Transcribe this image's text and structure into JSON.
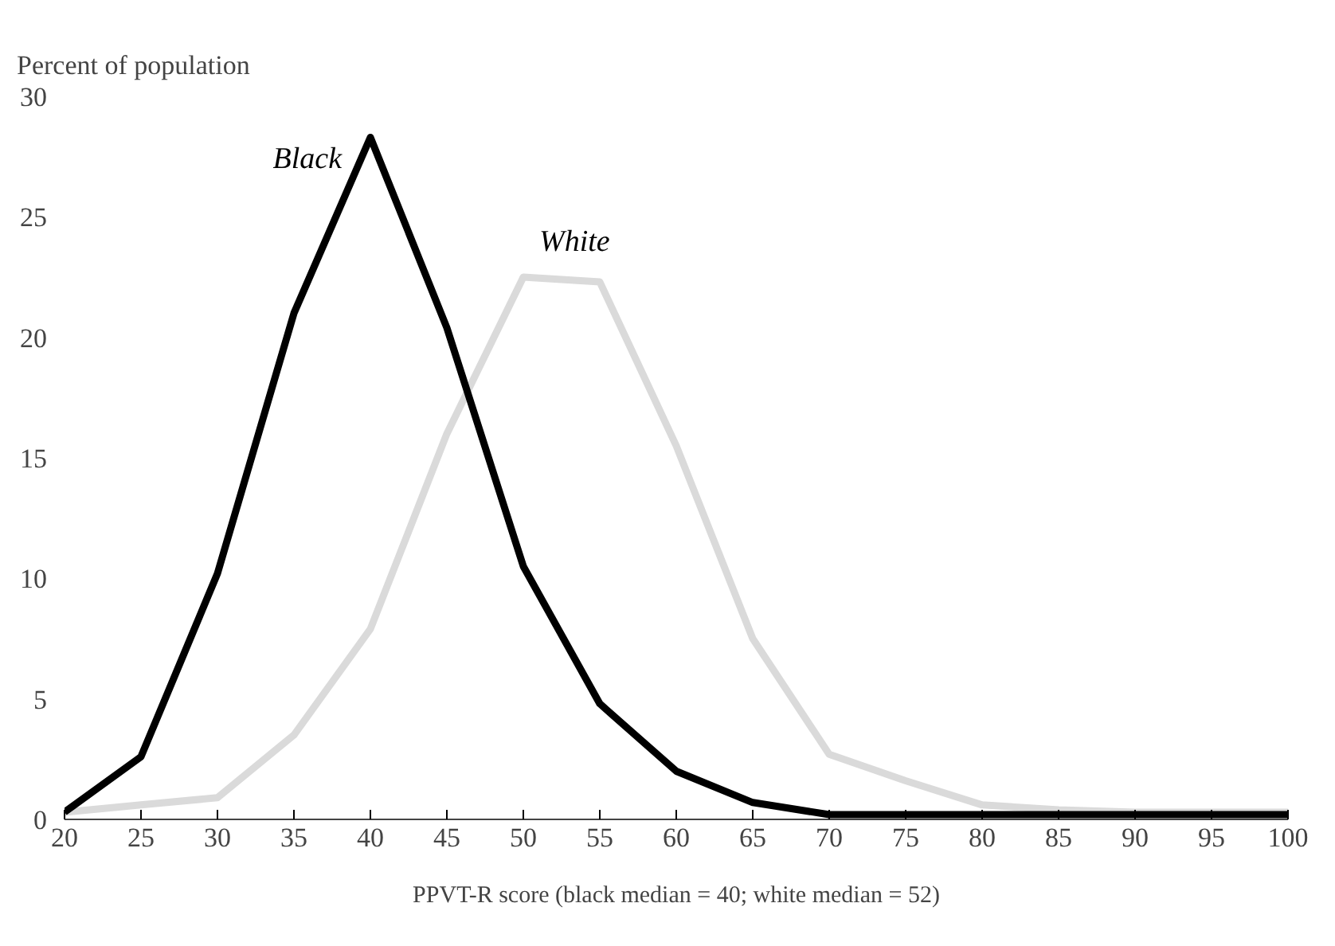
{
  "chart_data": {
    "type": "line",
    "ylabel": "Percent of population",
    "xlabel": "PPVT-R score (black median = 40; white median = 52)",
    "x": [
      20,
      25,
      30,
      35,
      40,
      45,
      50,
      55,
      60,
      65,
      70,
      75,
      80,
      85,
      90,
      95,
      100
    ],
    "xlim": [
      20,
      100
    ],
    "xticks": [
      20,
      25,
      30,
      35,
      40,
      45,
      50,
      55,
      60,
      65,
      70,
      75,
      80,
      85,
      90,
      95,
      100
    ],
    "ylim": [
      0,
      30
    ],
    "yticks": [
      0,
      5,
      10,
      15,
      20,
      25,
      30
    ],
    "grid": false,
    "marker": "none",
    "line_style": "solid",
    "series": [
      {
        "name": "White",
        "color": "#dadada",
        "values": [
          0.3,
          0.6,
          0.9,
          3.5,
          7.9,
          16,
          22.5,
          22.3,
          15.5,
          7.5,
          2.7,
          1.6,
          0.6,
          0.4,
          0.3,
          0.3,
          0.3
        ]
      },
      {
        "name": "Black",
        "color": "#000000",
        "values": [
          0.3,
          2.6,
          10.2,
          21,
          28.3,
          20.4,
          10.5,
          4.8,
          2.0,
          0.7,
          0.2,
          0.2,
          0.2,
          0.2,
          0.2,
          0.2,
          0.2
        ]
      }
    ]
  }
}
